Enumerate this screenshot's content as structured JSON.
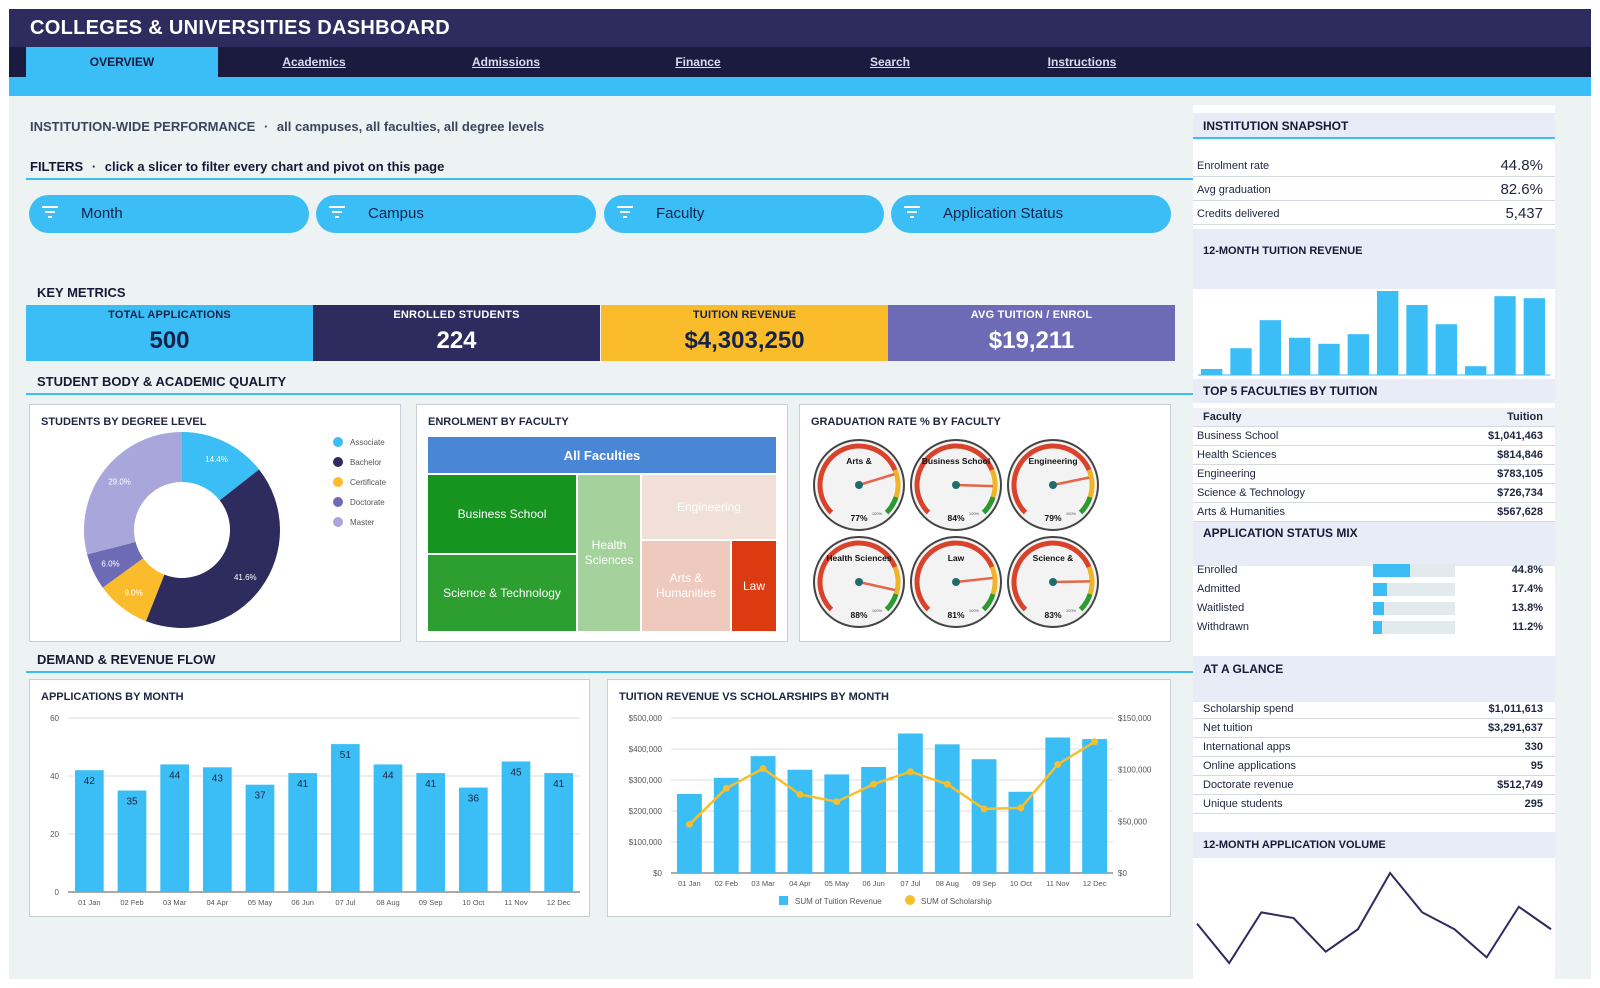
{
  "app": {
    "title": "COLLEGES & UNIVERSITIES DASHBOARD"
  },
  "nav": {
    "tabs": [
      {
        "label": "OVERVIEW",
        "active": true
      },
      {
        "label": "Academics"
      },
      {
        "label": "Admissions"
      },
      {
        "label": "Finance"
      },
      {
        "label": "Search"
      },
      {
        "label": "Instructions"
      }
    ]
  },
  "performance": {
    "title": "INSTITUTION-WIDE PERFORMANCE",
    "separator": "·",
    "scope": "all campuses, all faculties, all degree levels"
  },
  "filters": {
    "title": "FILTERS",
    "separator": "·",
    "hint": "click a slicer to filter every chart and pivot on this page",
    "slicers": [
      "Month",
      "Campus",
      "Faculty",
      "Application Status"
    ],
    "icon": "filter-icon"
  },
  "key_metrics": {
    "title": "KEY METRICS",
    "items": [
      {
        "label": "TOTAL APPLICATIONS",
        "value": "500",
        "color": "#3bbdf5",
        "text": "#15234a"
      },
      {
        "label": "ENROLLED STUDENTS",
        "value": "224",
        "color": "#2e2b5f",
        "text": "#ffffff"
      },
      {
        "label": "TUITION REVENUE",
        "value": "$4,303,250",
        "color": "#fbbc2c",
        "text": "#15234a"
      },
      {
        "label": "AVG TUITION / ENROL",
        "value": "$19,211",
        "color": "#6d6bb5",
        "text": "#ffffff"
      }
    ]
  },
  "sections": {
    "quality": "STUDENT BODY & ACADEMIC QUALITY",
    "flow": "DEMAND & REVENUE FLOW"
  },
  "charts": {
    "degree": "STUDENTS BY DEGREE LEVEL",
    "faculty": "ENROLMENT BY FACULTY",
    "graduation": "GRADUATION RATE % BY FACULTY",
    "apps": "APPLICATIONS BY MONTH",
    "revenue": "TUITION REVENUE VS SCHOLARSHIPS BY MONTH"
  },
  "chart_data": [
    {
      "type": "pie",
      "title": "STUDENTS BY DEGREE LEVEL",
      "series": [
        {
          "name": "Associate",
          "value": 14.4,
          "label": "14.4%",
          "color": "#3bbdf5"
        },
        {
          "name": "Bachelor",
          "value": 41.6,
          "label": "41.6%",
          "color": "#2e2b5f"
        },
        {
          "name": "Certificate",
          "value": 9.0,
          "label": "9.0%",
          "color": "#fbbc2c"
        },
        {
          "name": "Doctorate",
          "value": 6.0,
          "label": "6.0%",
          "color": "#6d6bb5"
        },
        {
          "name": "Master",
          "value": 29.0,
          "label": "29.0%",
          "color": "#a9a6dc"
        }
      ],
      "legend": "right"
    },
    {
      "type": "treemap",
      "title": "ENROLMENT BY FACULTY",
      "root": "All Faculties",
      "nodes": [
        "Business School",
        "Science & Technology",
        "Health Sciences",
        "Engineering",
        "Arts & Humanities",
        "Law"
      ]
    },
    {
      "type": "gauge",
      "title": "GRADUATION RATE % BY FACULTY",
      "gauges": [
        {
          "name": "Arts &",
          "value": 77,
          "label": "77%"
        },
        {
          "name": "Business School",
          "value": 84,
          "label": "84%"
        },
        {
          "name": "Engineering",
          "value": 79,
          "label": "79%"
        },
        {
          "name": "Health Sciences",
          "value": 88,
          "label": "88%"
        },
        {
          "name": "Law",
          "value": 81,
          "label": "81%"
        },
        {
          "name": "Science &",
          "value": 83,
          "label": "83%"
        }
      ],
      "scale_max": "100%"
    },
    {
      "type": "bar",
      "title": "APPLICATIONS BY MONTH",
      "categories": [
        "01 Jan",
        "02 Feb",
        "03 Mar",
        "04 Apr",
        "05 May",
        "06 Jun",
        "07 Jul",
        "08 Aug",
        "09 Sep",
        "10 Oct",
        "11 Nov",
        "12 Dec"
      ],
      "values": [
        42,
        35,
        44,
        43,
        37,
        41,
        51,
        44,
        41,
        36,
        45,
        41
      ],
      "ylim": [
        0,
        60
      ],
      "yticks": [
        "0",
        "20",
        "40",
        "60"
      ],
      "grid": true
    },
    {
      "type": "bar",
      "title": "TUITION REVENUE VS SCHOLARSHIPS BY MONTH",
      "categories": [
        "01 Jan",
        "02 Feb",
        "03 Mar",
        "04 Apr",
        "05 May",
        "06 Jun",
        "07 Jul",
        "08 Aug",
        "09 Sep",
        "10 Oct",
        "11 Nov",
        "12 Dec"
      ],
      "series": [
        {
          "name": "SUM of Tuition Revenue",
          "type": "bar",
          "axis": "left",
          "values": [
            255000,
            307000,
            377000,
            333000,
            318000,
            342000,
            450000,
            415000,
            367000,
            262000,
            437000,
            432000
          ]
        },
        {
          "name": "SUM of Scholarship",
          "type": "line",
          "axis": "right",
          "values": [
            47000,
            82000,
            101000,
            76000,
            69000,
            86000,
            98000,
            86000,
            62000,
            63000,
            105000,
            127000
          ]
        }
      ],
      "ylim_left": [
        0,
        500000
      ],
      "ylim_right": [
        0,
        150000
      ],
      "yticks_left": [
        "$0",
        "$100,000",
        "$200,000",
        "$300,000",
        "$400,000",
        "$500,000"
      ],
      "yticks_right": [
        "$0",
        "$50,000",
        "$100,000",
        "$150,000"
      ],
      "legend": "bottom"
    },
    {
      "type": "bar",
      "title": "12-MONTH TUITION REVENUE",
      "values": [
        255000,
        307000,
        377000,
        333000,
        318000,
        342000,
        450000,
        415000,
        367000,
        262000,
        437000,
        432000
      ]
    },
    {
      "type": "line",
      "title": "12-MONTH APPLICATION VOLUME",
      "values": [
        42,
        35,
        44,
        43,
        37,
        41,
        51,
        44,
        41,
        36,
        45,
        41
      ]
    }
  ],
  "snapshot": {
    "title": "INSTITUTION SNAPSHOT",
    "rows": [
      {
        "label": "Enrolment rate",
        "value": "44.8%"
      },
      {
        "label": "Avg graduation",
        "value": "82.6%"
      },
      {
        "label": "Credits delivered",
        "value": "5,437"
      }
    ]
  },
  "tuition_spark": {
    "title": "12-MONTH TUITION REVENUE"
  },
  "top5": {
    "title": "TOP 5 FACULTIES BY TUITION",
    "col1": "Faculty",
    "col2": "Tuition",
    "rows": [
      {
        "label": "Business School",
        "value": "$1,041,463"
      },
      {
        "label": "Health Sciences",
        "value": "$814,846"
      },
      {
        "label": "Engineering",
        "value": "$783,105"
      },
      {
        "label": "Science & Technology",
        "value": "$726,734"
      },
      {
        "label": "Arts & Humanities",
        "value": "$567,628"
      }
    ]
  },
  "status_mix": {
    "title": "APPLICATION STATUS MIX",
    "rows": [
      {
        "label": "Enrolled",
        "value": "44.8%",
        "fraction": 0.448
      },
      {
        "label": "Admitted",
        "value": "17.4%",
        "fraction": 0.174
      },
      {
        "label": "Waitlisted",
        "value": "13.8%",
        "fraction": 0.138
      },
      {
        "label": "Withdrawn",
        "value": "11.2%",
        "fraction": 0.112
      }
    ]
  },
  "glance": {
    "title": "AT A GLANCE",
    "rows": [
      {
        "label": "Scholarship spend",
        "value": "$1,011,613"
      },
      {
        "label": "Net tuition",
        "value": "$3,291,637"
      },
      {
        "label": "International apps",
        "value": "330"
      },
      {
        "label": "Online applications",
        "value": "95"
      },
      {
        "label": "Doctorate revenue",
        "value": "$512,749"
      },
      {
        "label": "Unique students",
        "value": "295"
      }
    ]
  },
  "apps_spark": {
    "title": "12-MONTH APPLICATION VOLUME"
  }
}
